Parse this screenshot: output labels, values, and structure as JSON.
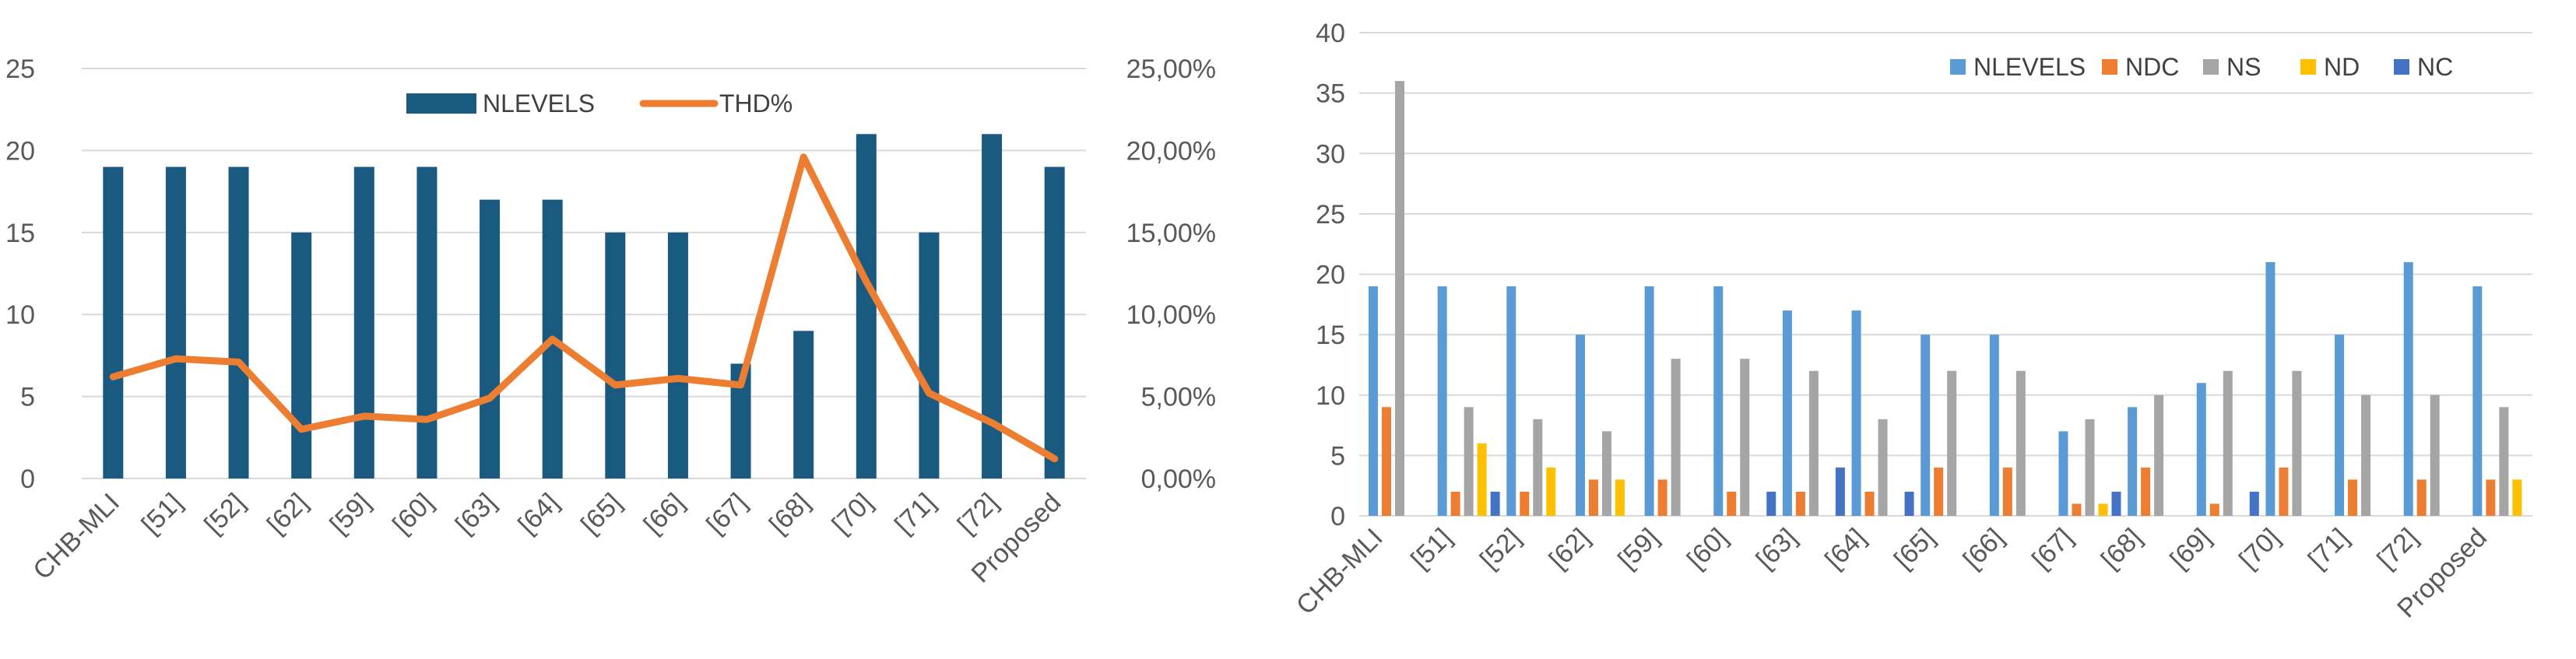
{
  "chart_data": [
    {
      "type": "bar",
      "categories": [
        "CHB-MLI",
        "[51]",
        "[52]",
        "[62]",
        "[59]",
        "[60]",
        "[63]",
        "[64]",
        "[65]",
        "[66]",
        "[67]",
        "[68]",
        "[70]",
        "[71]",
        "[72]",
        "Proposed"
      ],
      "series": [
        {
          "name": "NLEVELS",
          "kind": "bar",
          "axis": "left",
          "color": "#1b5a80",
          "values": [
            19,
            19,
            19,
            15,
            19,
            19,
            17,
            17,
            15,
            15,
            7,
            9,
            21,
            15,
            21,
            19
          ]
        },
        {
          "name": "THD%",
          "kind": "line",
          "axis": "right",
          "color": "#ed7d31",
          "values": [
            6.2,
            7.3,
            7.1,
            3.0,
            3.8,
            3.6,
            4.9,
            8.5,
            5.7,
            6.1,
            5.7,
            19.6,
            12.0,
            5.2,
            3.4,
            1.2
          ]
        }
      ],
      "y_left": {
        "min": 0,
        "max": 25,
        "ticks": [
          "0",
          "5",
          "10",
          "15",
          "20",
          "25"
        ]
      },
      "y_right": {
        "min": 0,
        "max": 25,
        "ticks": [
          "0,00%",
          "5,00%",
          "10,00%",
          "15,00%",
          "20,00%",
          "25,00%"
        ]
      },
      "grid": true,
      "legend": "top-center"
    },
    {
      "type": "bar",
      "categories": [
        "CHB-MLI",
        "[51]",
        "[52]",
        "[62]",
        "[59]",
        "[60]",
        "[63]",
        "[64]",
        "[65]",
        "[66]",
        "[67]",
        "[68]",
        "[69]",
        "[70]",
        "[71]",
        "[72]",
        "Proposed"
      ],
      "series": [
        {
          "name": "NLEVELS",
          "color": "#5b9bd5",
          "values": [
            19,
            19,
            19,
            15,
            19,
            19,
            17,
            17,
            15,
            15,
            7,
            9,
            11,
            21,
            15,
            21,
            19
          ]
        },
        {
          "name": "NDC",
          "color": "#ed7d31",
          "values": [
            9,
            2,
            2,
            3,
            3,
            2,
            2,
            2,
            4,
            4,
            1,
            4,
            1,
            4,
            3,
            3,
            3
          ]
        },
        {
          "name": "NS",
          "color": "#a5a5a5",
          "values": [
            36,
            9,
            8,
            7,
            13,
            13,
            12,
            8,
            12,
            12,
            8,
            10,
            12,
            12,
            10,
            10,
            9
          ]
        },
        {
          "name": "ND",
          "color": "#ffc000",
          "values": [
            0,
            6,
            4,
            3,
            0,
            0,
            0,
            0,
            0,
            0,
            1,
            0,
            0,
            0,
            0,
            0,
            3
          ]
        },
        {
          "name": "NC",
          "color": "#4472c4",
          "values": [
            0,
            2,
            0,
            0,
            0,
            2,
            4,
            2,
            0,
            0,
            2,
            0,
            2,
            0,
            0,
            0,
            0
          ]
        }
      ],
      "y": {
        "min": 0,
        "max": 40,
        "ticks": [
          "0",
          "5",
          "10",
          "15",
          "20",
          "25",
          "30",
          "35",
          "40"
        ]
      },
      "grid": true,
      "legend": "top-right"
    }
  ]
}
